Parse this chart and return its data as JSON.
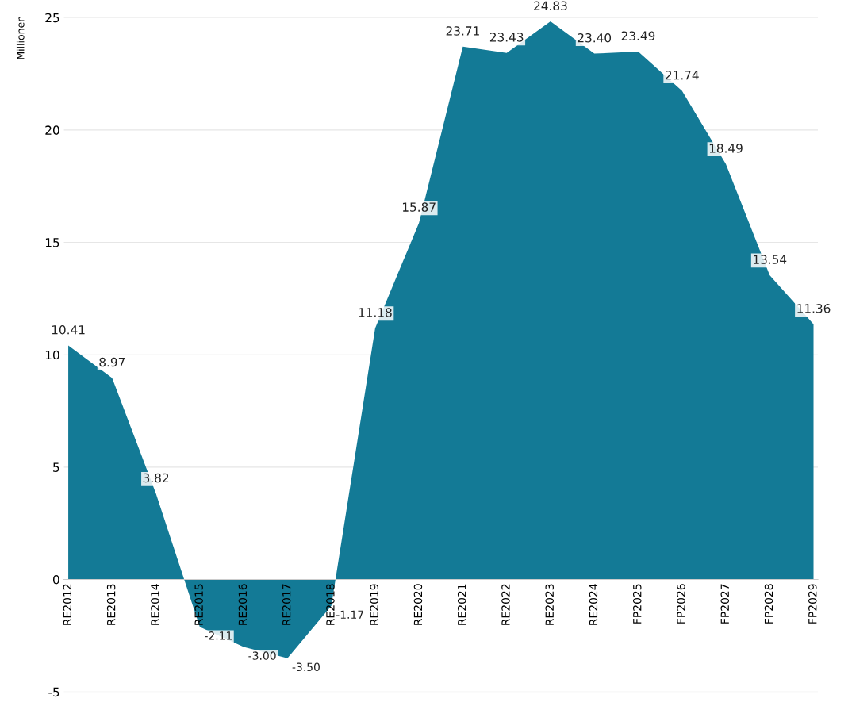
{
  "chart_data": {
    "type": "area",
    "ylabel": "Millionen",
    "categories": [
      "RE2012",
      "RE2013",
      "RE2014",
      "RE2015",
      "RE2016",
      "RE2017",
      "RE2018",
      "RE2019",
      "RE2020",
      "RE2021",
      "RE2022",
      "RE2023",
      "RE2024",
      "FP2025",
      "FP2026",
      "FP2027",
      "FP2028",
      "FP2029"
    ],
    "series": [
      {
        "color": "#137a96",
        "values": [
          10.41,
          8.97,
          3.82,
          -2.11,
          -3.0,
          -3.5,
          -1.17,
          11.18,
          15.87,
          23.71,
          23.43,
          24.83,
          23.4,
          23.49,
          21.74,
          18.49,
          13.54,
          11.36
        ],
        "value_labels": [
          "10.41",
          "8.97",
          "3.82",
          "-2.11",
          "-3.00",
          "-3.50",
          "-1.17",
          "11.18",
          "15.87",
          "23.71",
          "23.43",
          "24.83",
          "23.40",
          "23.49",
          "21.74",
          "18.49",
          "13.54",
          "11.36"
        ]
      }
    ],
    "ylim": [
      -5,
      25
    ],
    "yticks": [
      -5,
      0,
      5,
      10,
      15,
      20,
      25
    ],
    "grid": "y"
  }
}
